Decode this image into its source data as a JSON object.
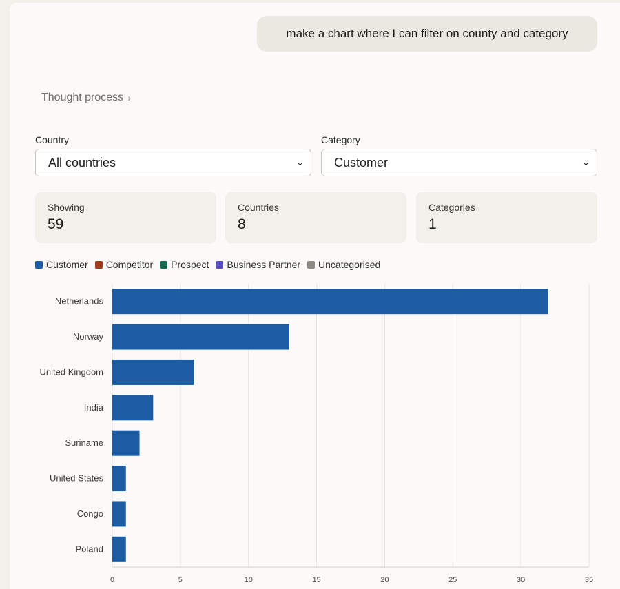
{
  "message": {
    "text": "make a chart where I can filter on county and category"
  },
  "thought_process": {
    "label": "Thought process",
    "chevron": "chevron-right-icon"
  },
  "filters": {
    "country": {
      "label": "Country",
      "value": "All countries"
    },
    "category": {
      "label": "Category",
      "value": "Customer"
    }
  },
  "stats": {
    "showing": {
      "label": "Showing",
      "value": "59"
    },
    "countries": {
      "label": "Countries",
      "value": "8"
    },
    "categories": {
      "label": "Categories",
      "value": "1"
    }
  },
  "legend": [
    {
      "label": "Customer",
      "color": "#1c5ca3"
    },
    {
      "label": "Competitor",
      "color": "#a13d1e"
    },
    {
      "label": "Prospect",
      "color": "#16694f"
    },
    {
      "label": "Business Partner",
      "color": "#5a4fc0"
    },
    {
      "label": "Uncategorised",
      "color": "#8b8a84"
    }
  ],
  "chart_data": {
    "type": "bar",
    "orientation": "horizontal",
    "categories": [
      "Netherlands",
      "Norway",
      "United Kingdom",
      "India",
      "Suriname",
      "United States",
      "Congo",
      "Poland"
    ],
    "series": [
      {
        "name": "Customer",
        "values": [
          32,
          13,
          6,
          3,
          2,
          1,
          1,
          1
        ],
        "color": "#1c5ca3"
      }
    ],
    "xlim": [
      0,
      35
    ],
    "xticks": [
      0,
      5,
      10,
      15,
      20,
      25,
      30,
      35
    ],
    "grid": true
  }
}
